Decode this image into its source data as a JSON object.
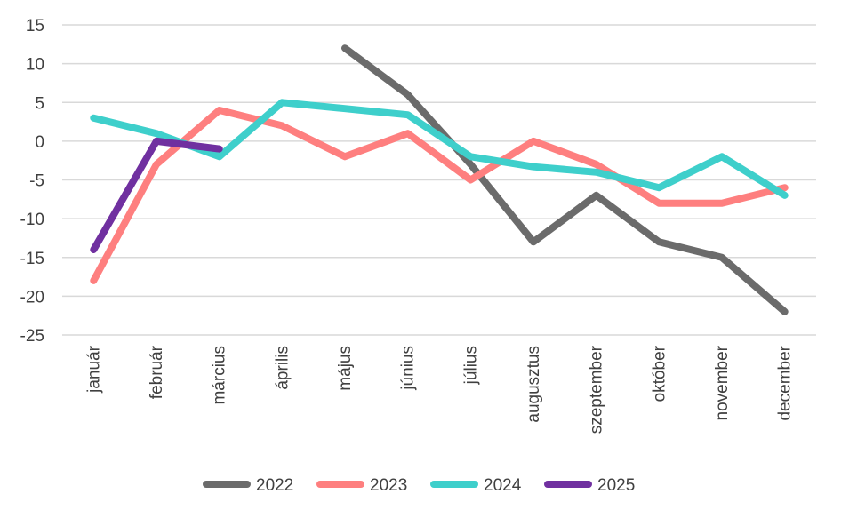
{
  "chart_data": {
    "type": "line",
    "title": "",
    "xlabel": "",
    "ylabel": "",
    "categories": [
      "január",
      "február",
      "március",
      "április",
      "május",
      "június",
      "július",
      "augusztus",
      "szeptember",
      "október",
      "november",
      "december"
    ],
    "ylim": [
      -25,
      15
    ],
    "yticks": [
      "15",
      "10",
      "5",
      "0",
      "-5",
      "-10",
      "-15",
      "-20",
      "-25"
    ],
    "yticks_values": [
      15,
      10,
      5,
      0,
      -5,
      -10,
      -15,
      -20,
      -25
    ],
    "grid": true,
    "legend_position": "bottom",
    "series": [
      {
        "name": "2022",
        "color": "#6b6b6b",
        "values": [
          null,
          null,
          null,
          null,
          12,
          6,
          -3,
          -13,
          -7,
          -13,
          -15,
          -22
        ]
      },
      {
        "name": "2023",
        "color": "#fe7f7f",
        "values": [
          -18,
          -3,
          4,
          2,
          -2,
          1,
          -5,
          0,
          -3,
          -8,
          -8,
          -6
        ]
      },
      {
        "name": "2024",
        "color": "#3ecfcb",
        "values": [
          3,
          1,
          -2,
          5,
          4.2,
          3.4,
          -2,
          -3.3,
          -4,
          -6,
          -2,
          -7
        ]
      },
      {
        "name": "2025",
        "color": "#7030a0",
        "values": [
          -14,
          0,
          -1,
          null,
          null,
          null,
          null,
          null,
          null,
          null,
          null,
          null
        ]
      }
    ]
  }
}
